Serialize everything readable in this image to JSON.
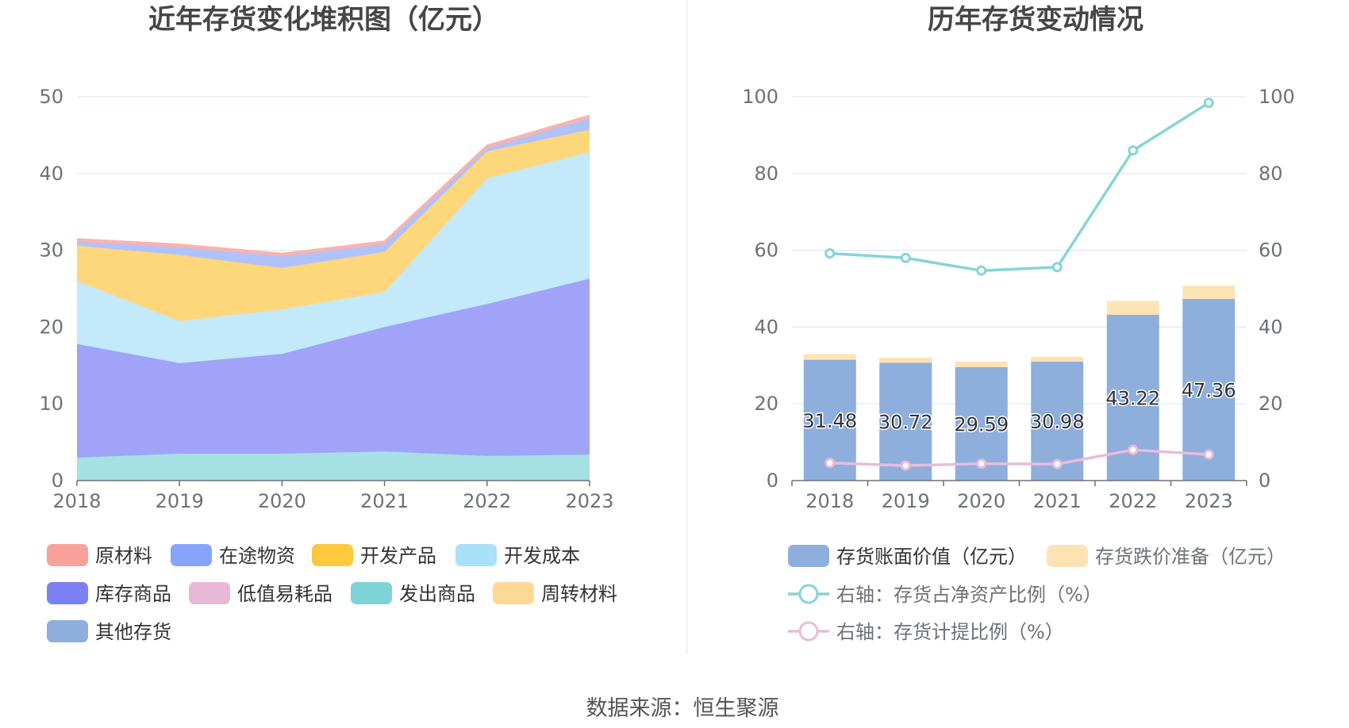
{
  "source": "数据来源：恒生聚源",
  "chart_data": [
    {
      "type": "area",
      "stacked": true,
      "title": "近年存货变化堆积图（亿元）",
      "x": [
        "2018",
        "2019",
        "2020",
        "2021",
        "2022",
        "2023"
      ],
      "ylim": [
        0,
        50
      ],
      "yticks": [
        0,
        10,
        20,
        30,
        40,
        50
      ],
      "grid": true,
      "legend_position": "bottom",
      "series": [
        {
          "name": "发出商品",
          "color": "#a5e0e3",
          "values": [
            3.0,
            3.5,
            3.5,
            3.8,
            3.2,
            3.4
          ]
        },
        {
          "name": "库存商品",
          "color": "#a0a3f7",
          "values": [
            14.8,
            11.8,
            13.0,
            16.2,
            19.8,
            22.9
          ]
        },
        {
          "name": "开发成本",
          "color": "#c3e9fa",
          "values": [
            8.2,
            5.5,
            5.8,
            4.6,
            16.4,
            16.5
          ]
        },
        {
          "name": "开发产品",
          "color": "#fed77b",
          "values": [
            4.6,
            8.6,
            5.4,
            5.2,
            3.5,
            2.9
          ]
        },
        {
          "name": "在途物资",
          "color": "#b0c2fc",
          "values": [
            0.5,
            1.0,
            1.5,
            1.0,
            0.4,
            1.5
          ]
        },
        {
          "name": "原材料",
          "color": "#f9b3ae",
          "values": [
            0.4,
            0.4,
            0.4,
            0.4,
            0.4,
            0.4
          ]
        },
        {
          "name": "低值易耗品",
          "color": "#e8bcdb",
          "values": [
            0,
            0,
            0,
            0,
            0,
            0
          ]
        },
        {
          "name": "周转材料",
          "color": "#fedb9c",
          "values": [
            0,
            0,
            0,
            0,
            0,
            0
          ]
        },
        {
          "name": "其他存货",
          "color": "#8eaedc",
          "values": [
            0,
            0,
            0,
            0,
            0,
            0
          ]
        }
      ],
      "legend": [
        {
          "name": "原材料",
          "color": "#f8a19c"
        },
        {
          "name": "在途物资",
          "color": "#88a4fa"
        },
        {
          "name": "开发产品",
          "color": "#fec83f"
        },
        {
          "name": "开发成本",
          "color": "#a9e1f8"
        },
        {
          "name": "库存商品",
          "color": "#7b80f3"
        },
        {
          "name": "低值易耗品",
          "color": "#e7b9d7"
        },
        {
          "name": "发出商品",
          "color": "#7ed3d7"
        },
        {
          "name": "周转材料",
          "color": "#fed895"
        },
        {
          "name": "其他存货",
          "color": "#8eaedc"
        }
      ]
    },
    {
      "type": "bar",
      "stacked": true,
      "title": "历年存货变动情况",
      "categories": [
        "2018",
        "2019",
        "2020",
        "2021",
        "2022",
        "2023"
      ],
      "ylim": [
        0,
        100
      ],
      "yticks": [
        0,
        20,
        40,
        60,
        80,
        100
      ],
      "y2lim": [
        0,
        100
      ],
      "y2ticks": [
        0,
        20,
        40,
        60,
        80,
        100
      ],
      "grid": true,
      "legend_position": "bottom",
      "series": [
        {
          "name": "存货账面价值（亿元）",
          "type": "bar",
          "axis": "left",
          "color": "#8eaedc",
          "values": [
            31.48,
            30.72,
            29.59,
            30.98,
            43.22,
            47.36
          ],
          "labels": [
            "31.48",
            "30.72",
            "29.59",
            "30.98",
            "43.22",
            "47.36"
          ]
        },
        {
          "name": "存货跌价准备（亿元）",
          "type": "bar",
          "axis": "left",
          "color": "#fde3b4",
          "values": [
            1.5,
            1.3,
            1.4,
            1.3,
            3.6,
            3.4
          ]
        },
        {
          "name": "右轴：存货占净资产比例（%）",
          "type": "line",
          "axis": "right",
          "color": "#85d4d8",
          "values": [
            59.2,
            58.0,
            54.7,
            55.6,
            86.0,
            98.4
          ]
        },
        {
          "name": "右轴：存货计提比例（%）",
          "type": "line",
          "axis": "right",
          "color": "#e8bcdb",
          "values": [
            4.6,
            3.9,
            4.4,
            4.3,
            8.0,
            6.8
          ]
        }
      ]
    }
  ]
}
